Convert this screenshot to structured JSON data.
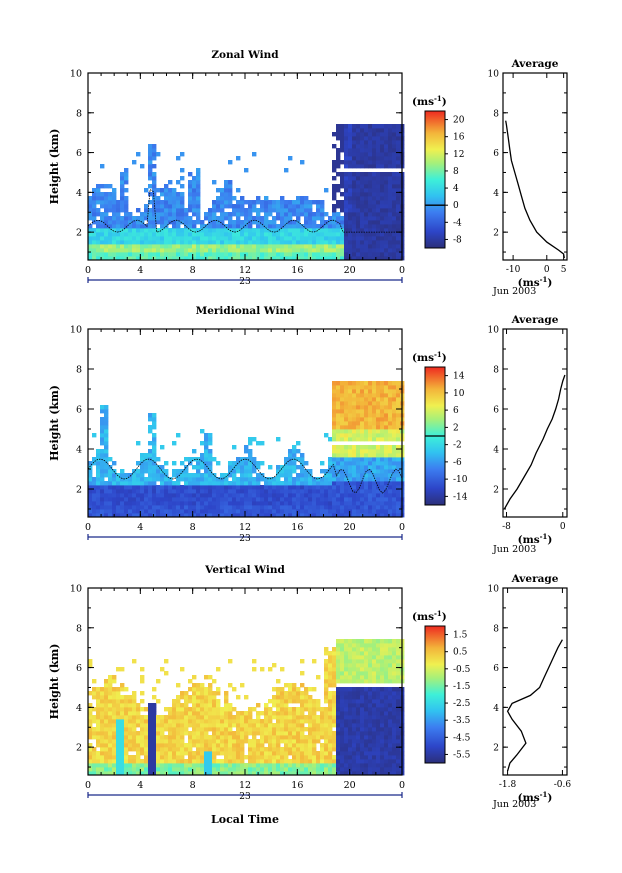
{
  "figure": {
    "month_label": "Jun 2003",
    "unit": "(ms",
    "unit_exp": "-1",
    "day_label": "23",
    "xlabel": "Local Time",
    "ylabel": "Height (km)",
    "avg_title": "Average"
  },
  "chart_data": [
    {
      "type": "heatmap",
      "title": "Zonal Wind",
      "x_ticks": [
        "0",
        "4",
        "8",
        "12",
        "16",
        "20",
        "0"
      ],
      "y_ticks": [
        "2",
        "4",
        "6",
        "8",
        "10"
      ],
      "xlim": [
        0,
        24
      ],
      "ylim": [
        0.6,
        10
      ],
      "colorbar_ticks": [
        "-8",
        "-4",
        "0",
        "4",
        "8",
        "12",
        "16",
        "20"
      ],
      "colorbar_range": [
        -10,
        22
      ],
      "zero_contour": 0,
      "average_profile": {
        "x_ticks": [
          "-10",
          "0",
          "5"
        ],
        "xlim": [
          -13,
          6
        ],
        "y_ticks": [
          "2",
          "4",
          "6",
          "8",
          "10"
        ],
        "ylim": [
          0.6,
          10
        ],
        "points": [
          [
            5.2,
            0.7
          ],
          [
            5,
            0.9
          ],
          [
            3.5,
            1.1
          ],
          [
            0,
            1.5
          ],
          [
            -3,
            2.0
          ],
          [
            -5,
            2.6
          ],
          [
            -6.5,
            3.2
          ],
          [
            -7.5,
            3.8
          ],
          [
            -8.5,
            4.4
          ],
          [
            -9.5,
            5.0
          ],
          [
            -10.5,
            5.6
          ],
          [
            -11,
            6.2
          ],
          [
            -11.5,
            6.8
          ],
          [
            -12,
            7.4
          ],
          [
            -12.2,
            7.6
          ]
        ]
      }
    },
    {
      "type": "heatmap",
      "title": "Meridional Wind",
      "x_ticks": [
        "0",
        "4",
        "8",
        "12",
        "16",
        "20",
        "0"
      ],
      "y_ticks": [
        "2",
        "4",
        "6",
        "8",
        "10"
      ],
      "xlim": [
        0,
        24
      ],
      "ylim": [
        0.6,
        10
      ],
      "colorbar_ticks": [
        "-14",
        "-10",
        "-6",
        "-2",
        "2",
        "6",
        "10",
        "14"
      ],
      "colorbar_range": [
        -16,
        16
      ],
      "zero_contour": 0,
      "average_profile": {
        "x_ticks": [
          "-8",
          "0"
        ],
        "xlim": [
          -8.5,
          0.6
        ],
        "y_ticks": [
          "2",
          "4",
          "6",
          "8",
          "10"
        ],
        "ylim": [
          0.6,
          10
        ],
        "points": [
          [
            -8.3,
            1.0
          ],
          [
            -7.5,
            1.5
          ],
          [
            -6.5,
            2.0
          ],
          [
            -5.5,
            2.6
          ],
          [
            -4.5,
            3.2
          ],
          [
            -3.8,
            3.8
          ],
          [
            -2.8,
            4.5
          ],
          [
            -2.2,
            5.0
          ],
          [
            -1.5,
            5.5
          ],
          [
            -1,
            6.0
          ],
          [
            -0.6,
            6.5
          ],
          [
            -0.3,
            7.0
          ],
          [
            0,
            7.4
          ],
          [
            0.3,
            7.7
          ]
        ]
      }
    },
    {
      "type": "heatmap",
      "title": "Vertical Wind",
      "x_ticks": [
        "0",
        "4",
        "8",
        "12",
        "16",
        "20",
        "0"
      ],
      "y_ticks": [
        "2",
        "4",
        "6",
        "8",
        "10"
      ],
      "xlim": [
        0,
        24
      ],
      "ylim": [
        0.6,
        10
      ],
      "colorbar_ticks": [
        "-5.5",
        "-4.5",
        "-3.5",
        "-2.5",
        "-1.5",
        "-0.5",
        "0.5",
        "1.5"
      ],
      "colorbar_range": [
        -6,
        2
      ],
      "average_profile": {
        "x_ticks": [
          "-1.8",
          "-0.6"
        ],
        "xlim": [
          -1.9,
          -0.5
        ],
        "y_ticks": [
          "2",
          "4",
          "6",
          "8",
          "10"
        ],
        "ylim": [
          0.6,
          10
        ],
        "points": [
          [
            -1.8,
            0.8
          ],
          [
            -1.75,
            1.2
          ],
          [
            -1.6,
            1.6
          ],
          [
            -1.4,
            2.2
          ],
          [
            -1.5,
            2.8
          ],
          [
            -1.7,
            3.4
          ],
          [
            -1.8,
            3.8
          ],
          [
            -1.7,
            4.2
          ],
          [
            -1.3,
            4.6
          ],
          [
            -1.1,
            5.0
          ],
          [
            -1.0,
            5.5
          ],
          [
            -0.9,
            6.0
          ],
          [
            -0.8,
            6.5
          ],
          [
            -0.7,
            7.0
          ],
          [
            -0.6,
            7.4
          ]
        ]
      }
    }
  ]
}
